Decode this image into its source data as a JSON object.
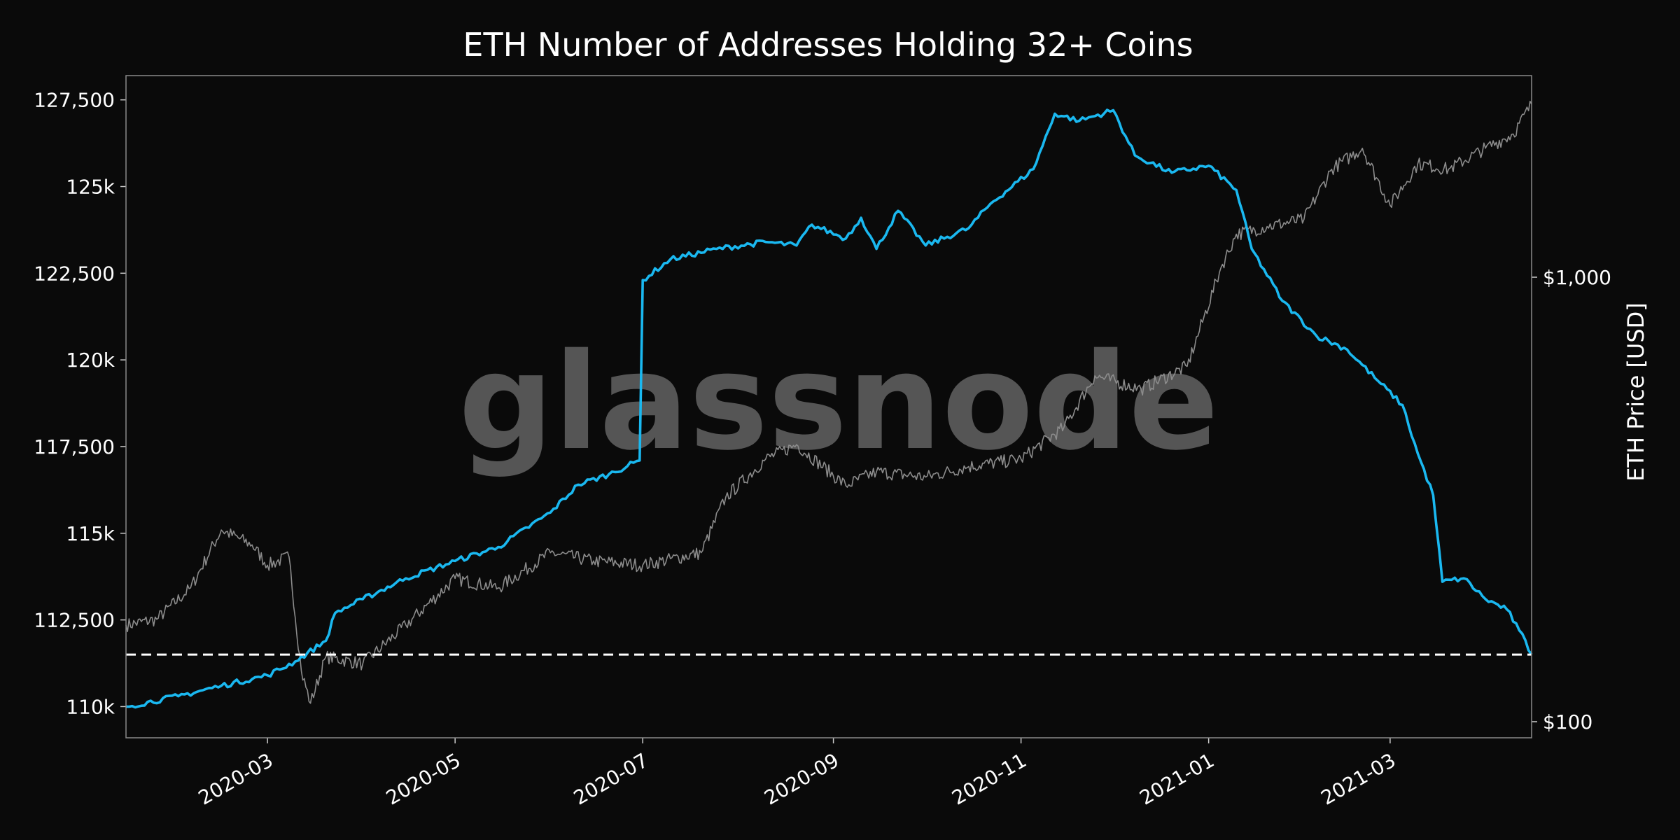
{
  "chart_data": {
    "type": "line",
    "title": "ETH Number of Addresses Holding 32+ Coins",
    "watermark": "glassnode",
    "x_range": [
      "2020-01-15",
      "2021-04-16"
    ],
    "x_ticks": [
      "2020-03",
      "2020-05",
      "2020-07",
      "2020-09",
      "2020-11",
      "2021-01",
      "2021-03"
    ],
    "y_left": {
      "range": [
        109100,
        128200
      ],
      "ticks": [
        110000,
        112500,
        115000,
        117500,
        120000,
        122500,
        125000,
        127500
      ],
      "tick_labels": [
        "110k",
        "112,500",
        "115k",
        "117,500",
        "120k",
        "122,500",
        "125k",
        "127,500"
      ]
    },
    "y_right": {
      "label": "ETH Price [USD]",
      "scale": "log",
      "ticks": [
        100,
        1000
      ],
      "tick_labels": [
        "$100",
        "$1,000"
      ]
    },
    "reference_line": {
      "value": 111500,
      "style": "dashed",
      "color": "#ffffff"
    },
    "colors": {
      "addresses": "#1ab8f0",
      "price": "#8c8c8c",
      "background": "#0a0a0a",
      "frame": "#8a8a8a"
    },
    "series": [
      {
        "axis": "left",
        "points": [
          [
            "2020-01-15",
            110000
          ],
          [
            "2020-02-01",
            110300
          ],
          [
            "2020-02-15",
            110600
          ],
          [
            "2020-03-01",
            110900
          ],
          [
            "2020-03-10",
            111300
          ],
          [
            "2020-03-20",
            111900
          ],
          [
            "2020-03-23",
            112700
          ],
          [
            "2020-04-01",
            113100
          ],
          [
            "2020-04-15",
            113700
          ],
          [
            "2020-05-01",
            114200
          ],
          [
            "2020-05-15",
            114600
          ],
          [
            "2020-06-01",
            115600
          ],
          [
            "2020-06-10",
            116400
          ],
          [
            "2020-06-20",
            116700
          ],
          [
            "2020-06-30",
            117100
          ],
          [
            "2020-07-01",
            122300
          ],
          [
            "2020-07-10",
            122900
          ],
          [
            "2020-07-25",
            123200
          ],
          [
            "2020-08-10",
            123400
          ],
          [
            "2020-08-20",
            123300
          ],
          [
            "2020-08-25",
            123900
          ],
          [
            "2020-09-05",
            123500
          ],
          [
            "2020-09-10",
            124100
          ],
          [
            "2020-09-15",
            123200
          ],
          [
            "2020-09-22",
            124300
          ],
          [
            "2020-10-01",
            123300
          ],
          [
            "2020-10-15",
            123800
          ],
          [
            "2020-10-22",
            124500
          ],
          [
            "2020-11-05",
            125500
          ],
          [
            "2020-11-12",
            127100
          ],
          [
            "2020-11-20",
            126900
          ],
          [
            "2020-12-01",
            127200
          ],
          [
            "2020-12-08",
            125900
          ],
          [
            "2020-12-20",
            125400
          ],
          [
            "2021-01-01",
            125600
          ],
          [
            "2021-01-10",
            124900
          ],
          [
            "2021-01-15",
            123200
          ],
          [
            "2021-01-25",
            121700
          ],
          [
            "2021-02-05",
            120700
          ],
          [
            "2021-02-15",
            120300
          ],
          [
            "2021-02-25",
            119400
          ],
          [
            "2021-03-05",
            118700
          ],
          [
            "2021-03-10",
            117300
          ],
          [
            "2021-03-15",
            116100
          ],
          [
            "2021-03-18",
            113600
          ],
          [
            "2021-03-25",
            113700
          ],
          [
            "2021-04-01",
            113100
          ],
          [
            "2021-04-08",
            112800
          ],
          [
            "2021-04-12",
            112200
          ],
          [
            "2021-04-16",
            111500
          ]
        ]
      },
      {
        "axis": "right",
        "points": [
          [
            "2020-01-15",
            165
          ],
          [
            "2020-01-25",
            170
          ],
          [
            "2020-02-05",
            200
          ],
          [
            "2020-02-15",
            270
          ],
          [
            "2020-02-25",
            250
          ],
          [
            "2020-03-01",
            225
          ],
          [
            "2020-03-08",
            235
          ],
          [
            "2020-03-12",
            130
          ],
          [
            "2020-03-15",
            110
          ],
          [
            "2020-03-20",
            140
          ],
          [
            "2020-04-01",
            135
          ],
          [
            "2020-04-15",
            165
          ],
          [
            "2020-05-01",
            210
          ],
          [
            "2020-05-15",
            200
          ],
          [
            "2020-06-01",
            240
          ],
          [
            "2020-06-15",
            230
          ],
          [
            "2020-07-01",
            225
          ],
          [
            "2020-07-20",
            240
          ],
          [
            "2020-07-28",
            320
          ],
          [
            "2020-08-10",
            390
          ],
          [
            "2020-08-20",
            420
          ],
          [
            "2020-09-05",
            340
          ],
          [
            "2020-09-15",
            365
          ],
          [
            "2020-10-01",
            355
          ],
          [
            "2020-10-15",
            375
          ],
          [
            "2020-11-01",
            390
          ],
          [
            "2020-11-15",
            460
          ],
          [
            "2020-11-25",
            600
          ],
          [
            "2020-12-10",
            560
          ],
          [
            "2020-12-25",
            630
          ],
          [
            "2021-01-05",
            1050
          ],
          [
            "2021-01-10",
            1250
          ],
          [
            "2021-01-20",
            1300
          ],
          [
            "2021-02-01",
            1350
          ],
          [
            "2021-02-10",
            1750
          ],
          [
            "2021-02-20",
            1950
          ],
          [
            "2021-03-01",
            1450
          ],
          [
            "2021-03-10",
            1800
          ],
          [
            "2021-03-20",
            1750
          ],
          [
            "2021-04-01",
            1950
          ],
          [
            "2021-04-10",
            2100
          ],
          [
            "2021-04-16",
            2450
          ]
        ]
      }
    ]
  }
}
